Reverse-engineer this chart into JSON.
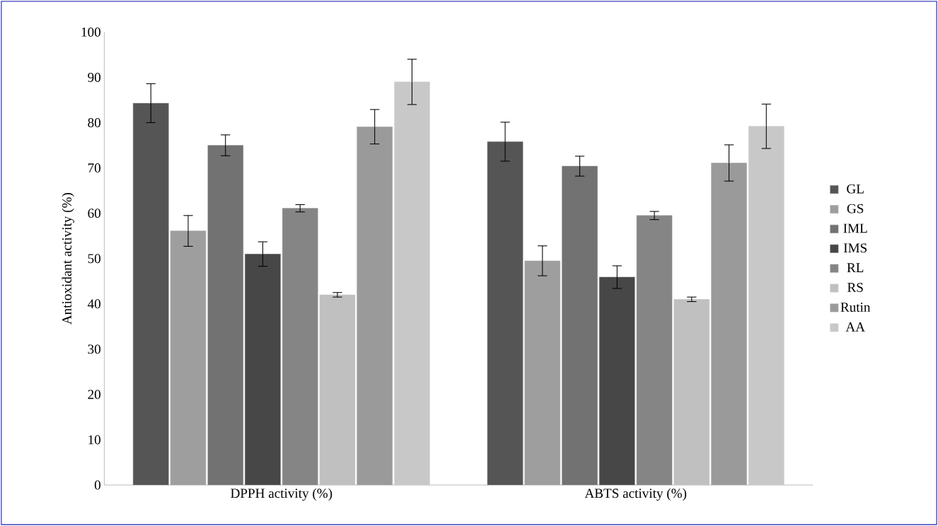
{
  "chart_data": {
    "type": "bar",
    "ylabel": "Antioxidant activity (%)",
    "categories": [
      "DPPH activity (%)",
      "ABTS activity (%)"
    ],
    "series": [
      {
        "name": "GL",
        "color": "#555555",
        "values": [
          84.3,
          75.8
        ],
        "errors": [
          4.3,
          4.3
        ]
      },
      {
        "name": "GS",
        "color": "#9e9e9e",
        "values": [
          56.1,
          49.5
        ],
        "errors": [
          3.4,
          3.3
        ]
      },
      {
        "name": "IML",
        "color": "#727272",
        "values": [
          75.0,
          70.4
        ],
        "errors": [
          2.3,
          2.2
        ]
      },
      {
        "name": "IMS",
        "color": "#474747",
        "values": [
          51.0,
          45.9
        ],
        "errors": [
          2.7,
          2.5
        ]
      },
      {
        "name": "RL",
        "color": "#858585",
        "values": [
          61.1,
          59.5
        ],
        "errors": [
          0.8,
          0.9
        ]
      },
      {
        "name": "RS",
        "color": "#c0c0c0",
        "values": [
          42.0,
          41.0
        ],
        "errors": [
          0.5,
          0.5
        ]
      },
      {
        "name": "Rutin",
        "color": "#9a9a9a",
        "values": [
          79.1,
          71.1
        ],
        "errors": [
          3.8,
          4.0
        ]
      },
      {
        "name": "AA",
        "color": "#c8c8c8",
        "values": [
          89.0,
          79.2
        ],
        "errors": [
          5.0,
          4.9
        ]
      }
    ],
    "ylim": [
      0,
      100
    ],
    "yticks": [
      0,
      10,
      20,
      30,
      40,
      50,
      60,
      70,
      80,
      90,
      100
    ],
    "grid": false,
    "legend": "right"
  }
}
